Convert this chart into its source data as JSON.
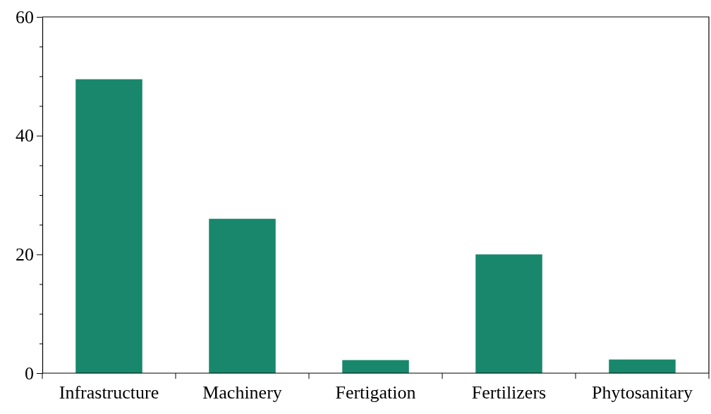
{
  "chart_data": {
    "type": "bar",
    "categories": [
      "Infrastructure",
      "Machinery",
      "Fertigation",
      "Fertilizers",
      "Phytosanitary"
    ],
    "values": [
      49.5,
      26,
      2.2,
      20,
      2.3
    ],
    "color": "#18876b",
    "ylim": [
      0,
      60
    ],
    "yticks": [
      0,
      {
        "value": 5,
        "label": null
      },
      {
        "value": 10,
        "label": null
      },
      {
        "value": 15,
        "label": null
      },
      20,
      {
        "value": 25,
        "label": null
      },
      {
        "value": 30,
        "label": null
      },
      {
        "value": 35,
        "label": null
      },
      40,
      {
        "value": 45,
        "label": null
      },
      {
        "value": 50,
        "label": null
      },
      {
        "value": 55,
        "label": null
      },
      60
    ],
    "grid": false
  }
}
